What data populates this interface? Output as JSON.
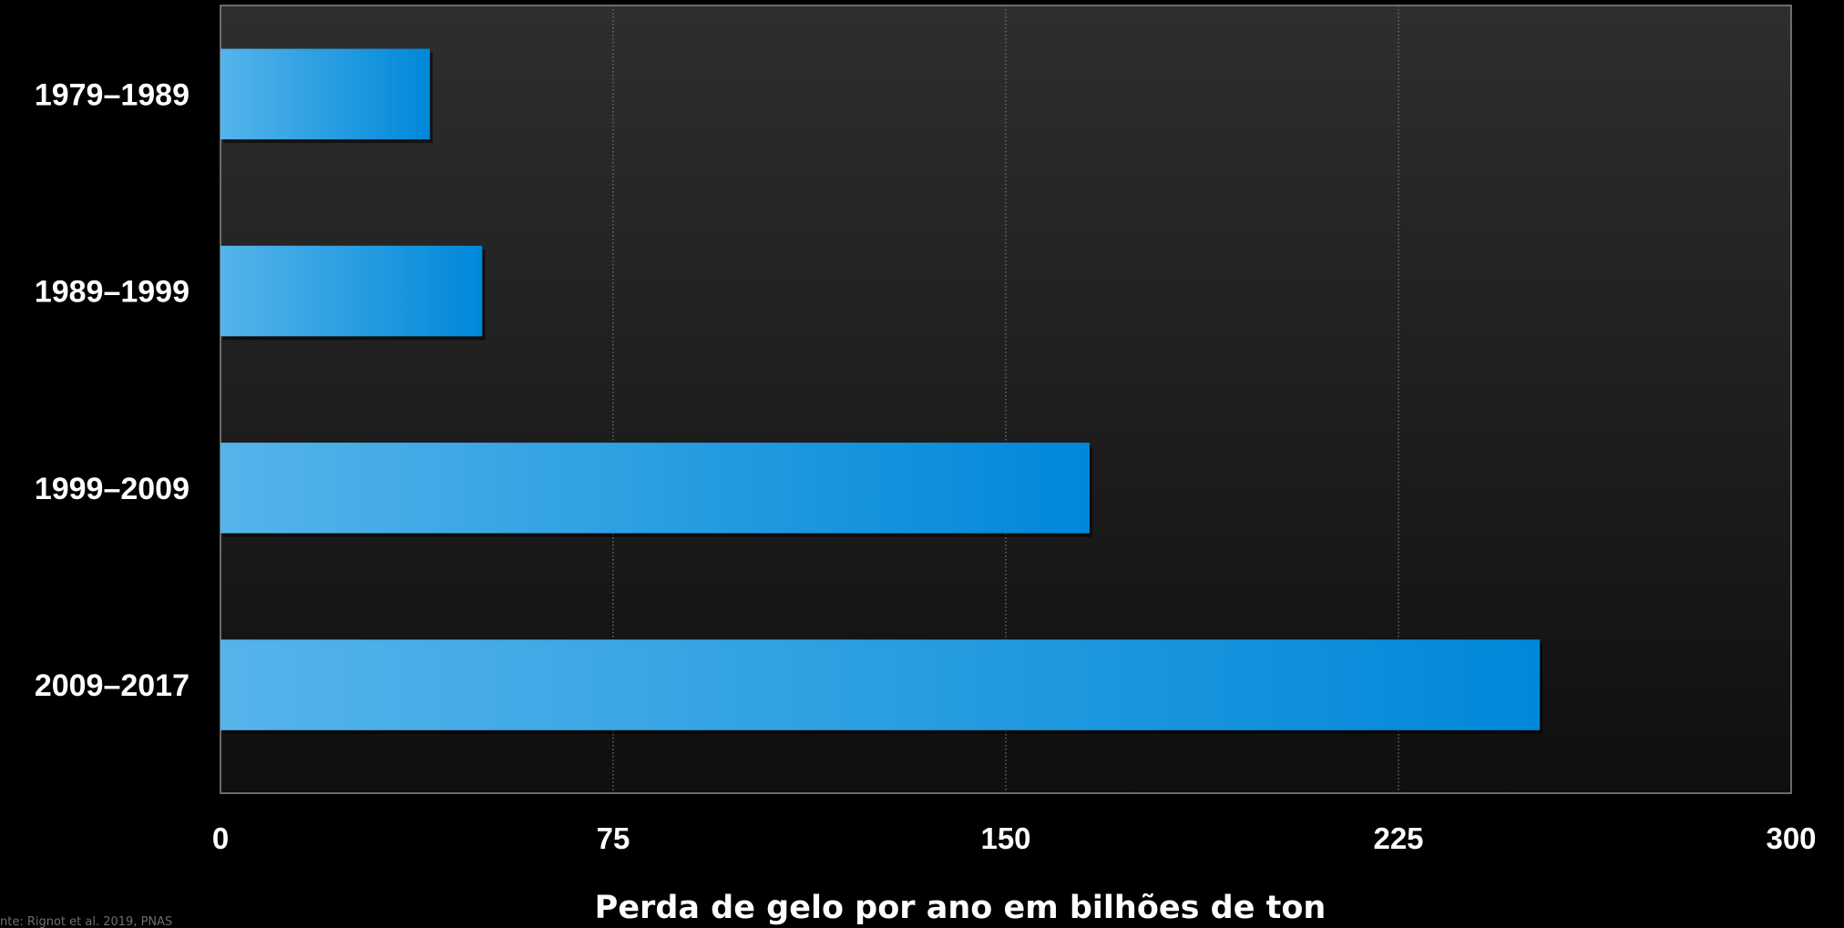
{
  "chart_data": {
    "type": "bar",
    "orientation": "horizontal",
    "categories": [
      "1979–1989",
      "1989–1999",
      "1999–2009",
      "2009–2017"
    ],
    "values": [
      40,
      50,
      166,
      252
    ],
    "xlabel": "Perda de gelo por ano em bilhões de ton",
    "ylabel": "",
    "xlim": [
      0,
      300
    ],
    "xticks": [
      "0",
      "75",
      "150",
      "225",
      "300"
    ],
    "grid": "vertical dotted",
    "legend": "none",
    "colors": {
      "bar_start": "#55b4ea",
      "bar_end": "#0088d9",
      "plot_bg_top": "#2e2e2e",
      "plot_bg_bottom": "#0f0f0f",
      "text": "#ffffff"
    }
  },
  "source": "nte: Rignot et al. 2019, PNAS"
}
